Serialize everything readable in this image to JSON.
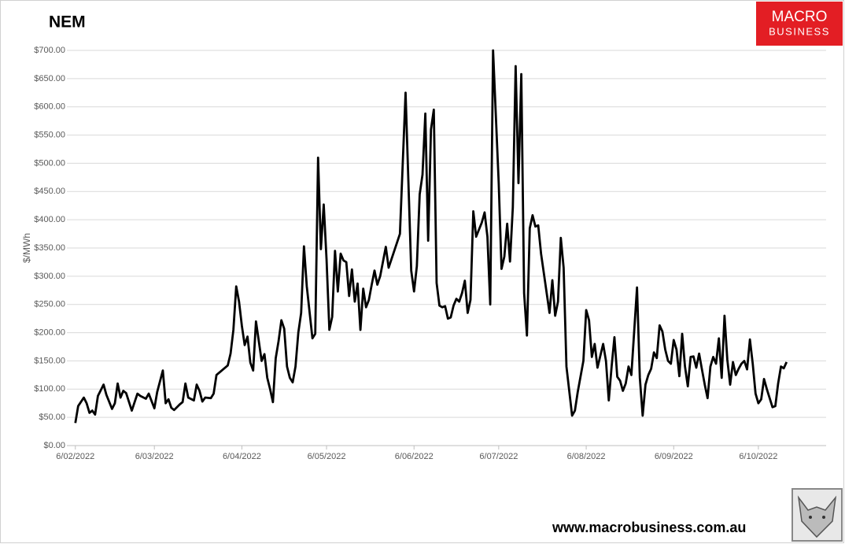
{
  "chart_data": {
    "type": "line",
    "title": "NEM",
    "y_label": "$/MWh",
    "color": "#000000",
    "grid": true,
    "xlim": [
      "2022-02-03",
      "2022-10-30"
    ],
    "xticks": [
      {
        "value": "2022-02-06",
        "label": "6/02/2022"
      },
      {
        "value": "2022-03-06",
        "label": "6/03/2022"
      },
      {
        "value": "2022-04-06",
        "label": "6/04/2022"
      },
      {
        "value": "2022-05-06",
        "label": "6/05/2022"
      },
      {
        "value": "2022-06-06",
        "label": "6/06/2022"
      },
      {
        "value": "2022-07-06",
        "label": "6/07/2022"
      },
      {
        "value": "2022-08-06",
        "label": "6/08/2022"
      },
      {
        "value": "2022-09-06",
        "label": "6/09/2022"
      },
      {
        "value": "2022-10-06",
        "label": "6/10/2022"
      }
    ],
    "ylim": [
      0,
      700
    ],
    "yticks": [
      {
        "value": 0,
        "label": "$0.00"
      },
      {
        "value": 50,
        "label": "$50.00"
      },
      {
        "value": 100,
        "label": "$100.00"
      },
      {
        "value": 150,
        "label": "$150.00"
      },
      {
        "value": 200,
        "label": "$200.00"
      },
      {
        "value": 250,
        "label": "$250.00"
      },
      {
        "value": 300,
        "label": "$300.00"
      },
      {
        "value": 350,
        "label": "$350.00"
      },
      {
        "value": 400,
        "label": "$400.00"
      },
      {
        "value": 450,
        "label": "$450.00"
      },
      {
        "value": 500,
        "label": "$500.00"
      },
      {
        "value": 550,
        "label": "$550.00"
      },
      {
        "value": 600,
        "label": "$600.00"
      },
      {
        "value": 650,
        "label": "$650.00"
      },
      {
        "value": 700,
        "label": "$700.00"
      }
    ],
    "x": [
      "2022-02-06",
      "2022-02-07",
      "2022-02-09",
      "2022-02-10",
      "2022-02-11",
      "2022-02-12",
      "2022-02-13",
      "2022-02-14",
      "2022-02-16",
      "2022-02-17",
      "2022-02-19",
      "2022-02-20",
      "2022-02-21",
      "2022-02-22",
      "2022-02-23",
      "2022-02-24",
      "2022-02-26",
      "2022-02-28",
      "2022-03-01",
      "2022-03-03",
      "2022-03-04",
      "2022-03-06",
      "2022-03-07",
      "2022-03-09",
      "2022-03-10",
      "2022-03-11",
      "2022-03-12",
      "2022-03-13",
      "2022-03-15",
      "2022-03-16",
      "2022-03-17",
      "2022-03-18",
      "2022-03-20",
      "2022-03-21",
      "2022-03-22",
      "2022-03-23",
      "2022-03-24",
      "2022-03-26",
      "2022-03-27",
      "2022-03-28",
      "2022-04-01",
      "2022-04-02",
      "2022-04-03",
      "2022-04-04",
      "2022-04-05",
      "2022-04-06",
      "2022-04-07",
      "2022-04-08",
      "2022-04-09",
      "2022-04-10",
      "2022-04-11",
      "2022-04-12",
      "2022-04-13",
      "2022-04-14",
      "2022-04-15",
      "2022-04-16",
      "2022-04-17",
      "2022-04-18",
      "2022-04-19",
      "2022-04-20",
      "2022-04-21",
      "2022-04-22",
      "2022-04-23",
      "2022-04-24",
      "2022-04-25",
      "2022-04-26",
      "2022-04-27",
      "2022-04-28",
      "2022-04-29",
      "2022-05-01",
      "2022-05-02",
      "2022-05-03",
      "2022-05-04",
      "2022-05-05",
      "2022-05-06",
      "2022-05-07",
      "2022-05-08",
      "2022-05-09",
      "2022-05-10",
      "2022-05-11",
      "2022-05-12",
      "2022-05-13",
      "2022-05-14",
      "2022-05-15",
      "2022-05-16",
      "2022-05-17",
      "2022-05-18",
      "2022-05-19",
      "2022-05-20",
      "2022-05-21",
      "2022-05-22",
      "2022-05-23",
      "2022-05-24",
      "2022-05-25",
      "2022-05-27",
      "2022-05-28",
      "2022-06-01",
      "2022-06-03",
      "2022-06-05",
      "2022-06-06",
      "2022-06-07",
      "2022-06-08",
      "2022-06-09",
      "2022-06-10",
      "2022-06-11",
      "2022-06-12",
      "2022-06-13",
      "2022-06-14",
      "2022-06-15",
      "2022-06-16",
      "2022-06-17",
      "2022-06-18",
      "2022-06-19",
      "2022-06-20",
      "2022-06-21",
      "2022-06-22",
      "2022-06-23",
      "2022-06-24",
      "2022-06-25",
      "2022-06-26",
      "2022-06-27",
      "2022-06-28",
      "2022-06-30",
      "2022-07-01",
      "2022-07-02",
      "2022-07-03",
      "2022-07-04",
      "2022-07-06",
      "2022-07-07",
      "2022-07-08",
      "2022-07-09",
      "2022-07-10",
      "2022-07-11",
      "2022-07-12",
      "2022-07-13",
      "2022-07-14",
      "2022-07-15",
      "2022-07-16",
      "2022-07-17",
      "2022-07-18",
      "2022-07-19",
      "2022-07-20",
      "2022-07-21",
      "2022-07-24",
      "2022-07-25",
      "2022-07-26",
      "2022-07-27",
      "2022-07-28",
      "2022-07-29",
      "2022-07-30",
      "2022-08-01",
      "2022-08-02",
      "2022-08-03",
      "2022-08-05",
      "2022-08-06",
      "2022-08-07",
      "2022-08-08",
      "2022-08-09",
      "2022-08-10",
      "2022-08-12",
      "2022-08-13",
      "2022-08-14",
      "2022-08-15",
      "2022-08-16",
      "2022-08-17",
      "2022-08-18",
      "2022-08-19",
      "2022-08-20",
      "2022-08-21",
      "2022-08-22",
      "2022-08-24",
      "2022-08-25",
      "2022-08-26",
      "2022-08-27",
      "2022-08-28",
      "2022-08-29",
      "2022-08-30",
      "2022-08-31",
      "2022-09-01",
      "2022-09-02",
      "2022-09-03",
      "2022-09-04",
      "2022-09-05",
      "2022-09-06",
      "2022-09-07",
      "2022-09-08",
      "2022-09-09",
      "2022-09-10",
      "2022-09-11",
      "2022-09-12",
      "2022-09-13",
      "2022-09-14",
      "2022-09-15",
      "2022-09-16",
      "2022-09-17",
      "2022-09-18",
      "2022-09-19",
      "2022-09-20",
      "2022-09-21",
      "2022-09-22",
      "2022-09-23",
      "2022-09-24",
      "2022-09-25",
      "2022-09-26",
      "2022-09-27",
      "2022-09-28",
      "2022-09-29",
      "2022-09-30",
      "2022-10-01",
      "2022-10-02",
      "2022-10-03",
      "2022-10-04",
      "2022-10-05",
      "2022-10-06",
      "2022-10-07",
      "2022-10-08",
      "2022-10-09",
      "2022-10-11",
      "2022-10-12",
      "2022-10-13",
      "2022-10-14",
      "2022-10-15",
      "2022-10-16"
    ],
    "values": [
      40,
      70,
      85,
      75,
      58,
      62,
      55,
      88,
      108,
      90,
      65,
      75,
      110,
      85,
      97,
      93,
      62,
      92,
      88,
      83,
      92,
      66,
      95,
      133,
      75,
      82,
      67,
      63,
      73,
      77,
      110,
      85,
      80,
      108,
      97,
      78,
      85,
      84,
      92,
      125,
      142,
      163,
      205,
      282,
      255,
      212,
      178,
      193,
      147,
      133,
      220,
      185,
      150,
      162,
      120,
      100,
      77,
      155,
      185,
      222,
      207,
      140,
      120,
      112,
      140,
      200,
      235,
      353,
      282,
      190,
      198,
      510,
      348,
      427,
      330,
      205,
      228,
      345,
      273,
      340,
      328,
      325,
      265,
      312,
      255,
      287,
      205,
      278,
      245,
      258,
      285,
      310,
      285,
      300,
      352,
      315,
      375,
      625,
      310,
      273,
      318,
      445,
      480,
      588,
      363,
      560,
      595,
      288,
      248,
      245,
      247,
      225,
      227,
      248,
      260,
      255,
      270,
      292,
      235,
      258,
      415,
      370,
      395,
      413,
      370,
      250,
      700,
      465,
      313,
      335,
      393,
      326,
      422,
      672,
      465,
      658,
      270,
      195,
      385,
      408,
      388,
      390,
      340,
      235,
      293,
      230,
      255,
      368,
      315,
      140,
      53,
      62,
      95,
      150,
      240,
      222,
      157,
      180,
      138,
      180,
      150,
      80,
      140,
      192,
      122,
      115,
      97,
      110,
      140,
      125,
      280,
      120,
      53,
      108,
      125,
      136,
      165,
      155,
      213,
      202,
      170,
      150,
      145,
      187,
      170,
      123,
      198,
      140,
      105,
      157,
      158,
      138,
      163,
      135,
      108,
      84,
      140,
      157,
      145,
      190,
      120,
      230,
      152,
      108,
      148,
      125,
      136,
      145,
      150,
      135,
      188,
      145,
      92,
      75,
      82,
      118,
      100,
      68,
      70,
      110,
      140,
      137,
      148
    ]
  },
  "branding": {
    "logo_top": "MACRO",
    "logo_bottom": "BUSINESS",
    "url": "www.macrobusiness.com.au"
  }
}
